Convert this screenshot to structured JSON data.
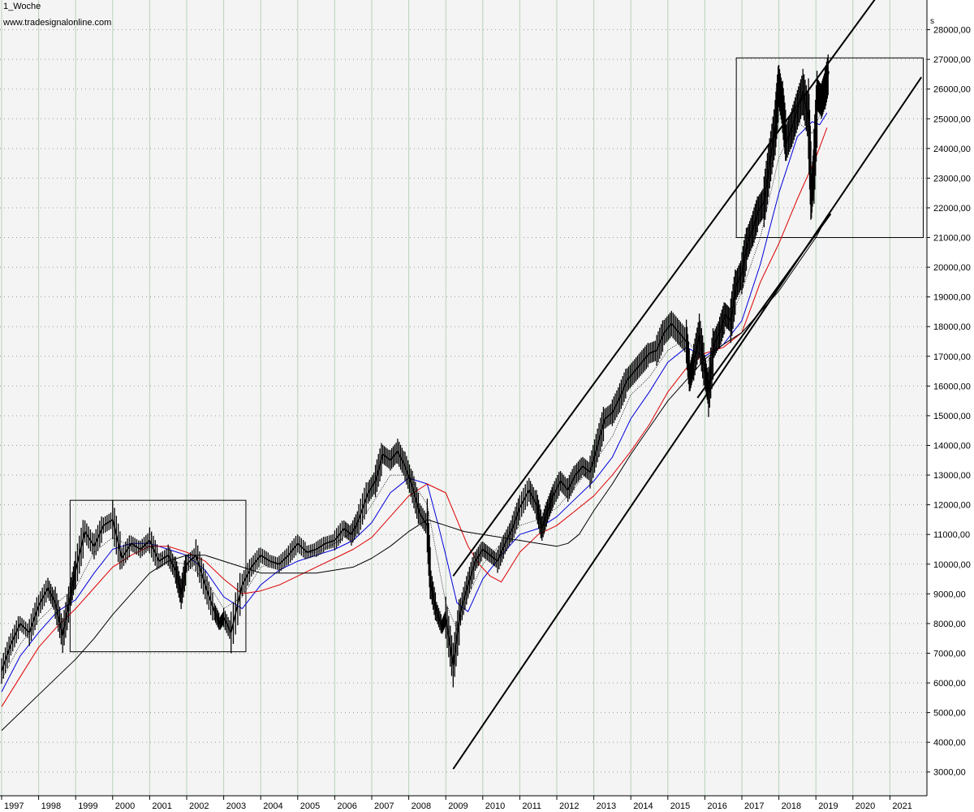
{
  "header": {
    "title": "1_Woche",
    "source": "www.tradesignalonline.com",
    "unit": "s"
  },
  "colors": {
    "background": "#f4f4f4",
    "grid_vertical": "#b8d2b8",
    "grid_horizontal": "#9a9a9a",
    "price": "#000000",
    "ma_short": "#000000",
    "ma_mid": "#0000dd",
    "ma_long": "#dd0000",
    "ma_longest": "#000000",
    "trendlines": "#000000",
    "boxes": "#000000"
  },
  "chart_data": {
    "type": "line",
    "title": "",
    "xlabel": "",
    "ylabel": "",
    "xlim": [
      1997.0,
      2021.9
    ],
    "ylim": [
      2200,
      29000
    ],
    "grid": true,
    "y_axis_side": "right",
    "x_ticks": [
      "1997",
      "1998",
      "1999",
      "2000",
      "2001",
      "2002",
      "2003",
      "2004",
      "2005",
      "2006",
      "2007",
      "2008",
      "2009",
      "2010",
      "2011",
      "2012",
      "2013",
      "2014",
      "2015",
      "2016",
      "2017",
      "2018",
      "2019",
      "2020",
      "2021"
    ],
    "y_ticks": [
      {
        "value": 3000,
        "label": "3000,00"
      },
      {
        "value": 4000,
        "label": "4000,00"
      },
      {
        "value": 5000,
        "label": "5000,00"
      },
      {
        "value": 6000,
        "label": "6000,00"
      },
      {
        "value": 7000,
        "label": "7000,00"
      },
      {
        "value": 8000,
        "label": "8000,00"
      },
      {
        "value": 9000,
        "label": "9000,00"
      },
      {
        "value": 10000,
        "label": "10000,00"
      },
      {
        "value": 11000,
        "label": "11000,00"
      },
      {
        "value": 12000,
        "label": "12000,00"
      },
      {
        "value": 13000,
        "label": "13000,00"
      },
      {
        "value": 14000,
        "label": "14000,00"
      },
      {
        "value": 15000,
        "label": "15000,00"
      },
      {
        "value": 16000,
        "label": "16000,00"
      },
      {
        "value": 17000,
        "label": "17000,00"
      },
      {
        "value": 18000,
        "label": "18000,00"
      },
      {
        "value": 19000,
        "label": "19000,00"
      },
      {
        "value": 20000,
        "label": "20000,00"
      },
      {
        "value": 21000,
        "label": "21000,00"
      },
      {
        "value": 22000,
        "label": "22000,00"
      },
      {
        "value": 23000,
        "label": "23000,00"
      },
      {
        "value": 24000,
        "label": "24000,00"
      },
      {
        "value": 25000,
        "label": "25000,00"
      },
      {
        "value": 26000,
        "label": "26000,00"
      },
      {
        "value": 27000,
        "label": "27000,00"
      },
      {
        "value": 28000,
        "label": "28000,00"
      }
    ],
    "series": [
      {
        "style": "price",
        "color": "#000000",
        "x": [
          1997.0,
          1997.25,
          1997.5,
          1997.75,
          1998.0,
          1998.25,
          1998.45,
          1998.65,
          1998.85,
          1999.0,
          1999.25,
          1999.5,
          1999.75,
          2000.0,
          2000.25,
          2000.5,
          2000.75,
          2001.0,
          2001.25,
          2001.5,
          2001.7,
          2001.85,
          2002.0,
          2002.25,
          2002.5,
          2002.75,
          2002.9,
          2003.0,
          2003.2,
          2003.5,
          2003.75,
          2004.0,
          2004.25,
          2004.5,
          2004.75,
          2005.0,
          2005.25,
          2005.5,
          2005.75,
          2006.0,
          2006.25,
          2006.45,
          2006.65,
          2006.9,
          2007.1,
          2007.3,
          2007.5,
          2007.7,
          2007.9,
          2008.1,
          2008.3,
          2008.5,
          2008.6,
          2008.75,
          2008.9,
          2009.0,
          2009.2,
          2009.4,
          2009.6,
          2009.8,
          2010.0,
          2010.2,
          2010.4,
          2010.6,
          2010.8,
          2011.0,
          2011.25,
          2011.45,
          2011.6,
          2011.75,
          2011.9,
          2012.1,
          2012.3,
          2012.5,
          2012.7,
          2012.9,
          2013.1,
          2013.3,
          2013.5,
          2013.7,
          2013.9,
          2014.1,
          2014.3,
          2014.5,
          2014.7,
          2014.9,
          2015.1,
          2015.3,
          2015.5,
          2015.6,
          2015.7,
          2015.85,
          2016.0,
          2016.1,
          2016.25,
          2016.4,
          2016.55,
          2016.7,
          2016.85,
          2017.0,
          2017.15,
          2017.3,
          2017.45,
          2017.6,
          2017.75,
          2017.9,
          2018.0,
          2018.1,
          2018.2,
          2018.35,
          2018.5,
          2018.65,
          2018.8,
          2018.88,
          2018.95,
          2019.05,
          2019.15,
          2019.25,
          2019.35
        ],
        "values": [
          6400,
          7300,
          8000,
          7700,
          8600,
          9200,
          8700,
          7600,
          8900,
          9800,
          11100,
          10600,
          11300,
          11500,
          10200,
          10700,
          10500,
          10800,
          10100,
          10300,
          9800,
          9000,
          10000,
          10300,
          9300,
          8400,
          8000,
          8200,
          7700,
          9300,
          9900,
          10300,
          10100,
          10000,
          10300,
          10700,
          10400,
          10500,
          10700,
          10800,
          11200,
          11000,
          11500,
          12400,
          12800,
          13700,
          13500,
          13800,
          13300,
          12600,
          11700,
          11300,
          9300,
          8400,
          7900,
          8200,
          6600,
          8400,
          9300,
          10100,
          10500,
          10300,
          10100,
          10700,
          11200,
          11900,
          12500,
          12000,
          11200,
          11800,
          12300,
          12800,
          12500,
          13000,
          13300,
          13100,
          14000,
          14900,
          15100,
          15600,
          16200,
          16500,
          16800,
          17100,
          17200,
          17800,
          18100,
          17800,
          17500,
          16300,
          16800,
          17700,
          16500,
          15800,
          17400,
          17800,
          18400,
          18200,
          19400,
          19800,
          20800,
          21300,
          21900,
          22200,
          23500,
          24700,
          26100,
          25400,
          24200,
          24700,
          25300,
          25900,
          25000,
          22400,
          23400,
          25800,
          25600,
          26000,
          26600
        ]
      },
      {
        "style": "ma",
        "color": "#000000",
        "x": [
          1997.0,
          1997.5,
          1998.0,
          1998.5,
          1999.0,
          1999.5,
          2000.0,
          2000.5,
          2001.0,
          2001.5,
          2002.0,
          2002.5,
          2003.0,
          2003.5,
          2004.0,
          2004.5,
          2005.0,
          2005.5,
          2006.0,
          2006.5,
          2007.0,
          2007.5,
          2008.0,
          2008.5,
          2008.8,
          2009.0,
          2009.3,
          2009.6,
          2010.0,
          2010.5,
          2011.0,
          2011.5,
          2012.0,
          2012.5,
          2013.0,
          2013.5,
          2014.0,
          2014.5,
          2015.0,
          2015.5,
          2016.0,
          2016.5,
          2017.0,
          2017.5,
          2018.0,
          2018.5,
          2018.9,
          2019.1,
          2019.3
        ],
        "values": [
          6100,
          7300,
          8100,
          8700,
          9200,
          10400,
          10900,
          10600,
          10600,
          10100,
          10000,
          9500,
          8500,
          8900,
          9900,
          10100,
          10400,
          10400,
          10700,
          11100,
          12000,
          13000,
          13000,
          12000,
          10000,
          8700,
          7800,
          8900,
          10000,
          10700,
          11300,
          11500,
          11900,
          12600,
          13400,
          14300,
          15700,
          16300,
          17200,
          17600,
          16700,
          17700,
          19200,
          21000,
          23700,
          24900,
          24500,
          25100,
          25600
        ]
      },
      {
        "style": "ma",
        "color": "#0000dd",
        "x": [
          1997.0,
          1997.5,
          1998.0,
          1998.5,
          1999.0,
          1999.5,
          2000.0,
          2000.5,
          2001.0,
          2001.5,
          2002.0,
          2002.5,
          2003.0,
          2003.5,
          2004.0,
          2004.5,
          2005.0,
          2005.5,
          2006.0,
          2006.5,
          2007.0,
          2007.5,
          2008.0,
          2008.5,
          2008.8,
          2009.0,
          2009.3,
          2009.6,
          2010.0,
          2010.5,
          2011.0,
          2011.5,
          2012.0,
          2012.5,
          2013.0,
          2013.5,
          2014.0,
          2014.5,
          2015.0,
          2015.5,
          2016.0,
          2016.5,
          2017.0,
          2017.5,
          2018.0,
          2018.5,
          2018.9,
          2019.1,
          2019.3
        ],
        "values": [
          5700,
          6900,
          7700,
          8400,
          8800,
          9700,
          10500,
          10700,
          10700,
          10500,
          10300,
          9800,
          8900,
          8500,
          9300,
          9800,
          10100,
          10300,
          10500,
          10800,
          11400,
          12400,
          12900,
          12700,
          11300,
          10300,
          8700,
          8400,
          9500,
          10300,
          11000,
          11200,
          11600,
          12200,
          12800,
          13600,
          14900,
          15800,
          16800,
          17300,
          17000,
          17400,
          18200,
          20100,
          22500,
          24400,
          24900,
          24800,
          25200
        ]
      },
      {
        "style": "ma",
        "color": "#dd0000",
        "x": [
          1997.0,
          1997.5,
          1998.0,
          1998.5,
          1999.0,
          1999.5,
          2000.0,
          2000.5,
          2001.0,
          2001.5,
          2002.0,
          2002.5,
          2003.0,
          2003.5,
          2004.0,
          2004.5,
          2005.0,
          2005.5,
          2006.0,
          2006.5,
          2007.0,
          2007.5,
          2008.0,
          2008.5,
          2009.0,
          2009.3,
          2009.6,
          2009.9,
          2010.2,
          2010.5,
          2010.7,
          2011.0,
          2011.5,
          2012.0,
          2012.5,
          2013.0,
          2013.5,
          2014.0,
          2014.5,
          2015.0,
          2015.5,
          2016.0,
          2016.5,
          2017.0,
          2017.5,
          2018.0,
          2018.5,
          2019.0,
          2019.3
        ],
        "values": [
          5200,
          6200,
          7200,
          7900,
          8500,
          9200,
          9900,
          10300,
          10600,
          10600,
          10400,
          10100,
          9500,
          9000,
          9100,
          9300,
          9600,
          9900,
          10200,
          10500,
          10900,
          11600,
          12300,
          12700,
          12400,
          11500,
          10600,
          10000,
          9600,
          9400,
          9800,
          10400,
          11000,
          11300,
          11800,
          12300,
          13000,
          13800,
          14700,
          15800,
          16600,
          17100,
          17300,
          17800,
          19500,
          20800,
          22300,
          23700,
          24700
        ]
      },
      {
        "style": "ma",
        "color": "#000000",
        "x": [
          1997.0,
          1997.5,
          1998.0,
          1998.5,
          1999.0,
          1999.5,
          2000.0,
          2000.5,
          2001.0,
          2001.5,
          2002.0,
          2002.5,
          2003.0,
          2003.5,
          2004.0,
          2004.5,
          2005.0,
          2005.5,
          2006.0,
          2006.5,
          2007.0,
          2007.5,
          2008.0,
          2008.5,
          2009.0,
          2009.5,
          2010.0,
          2010.5,
          2011.0,
          2011.5,
          2012.0,
          2012.3,
          2012.6,
          2013.0,
          2013.5,
          2014.0,
          2014.5,
          2015.0,
          2015.5,
          2016.0,
          2016.5,
          2017.0,
          2017.5,
          2018.0,
          2018.5,
          2019.0,
          2019.3
        ],
        "values": [
          4400,
          5000,
          5600,
          6200,
          6800,
          7500,
          8300,
          9000,
          9700,
          10100,
          10300,
          10300,
          10100,
          9900,
          9700,
          9700,
          9700,
          9700,
          9800,
          9900,
          10200,
          10600,
          11100,
          11500,
          11300,
          11100,
          11000,
          10900,
          10800,
          10700,
          10600,
          10700,
          11000,
          11800,
          12700,
          13700,
          14600,
          15500,
          16200,
          16900,
          17400,
          17800,
          18500,
          19200,
          20100,
          21000,
          21700
        ]
      }
    ],
    "trendlines": [
      {
        "x": [
          2009.2,
          2020.7
        ],
        "values": [
          9600,
          29200
        ]
      },
      {
        "x": [
          2009.2,
          2021.85
        ],
        "values": [
          3100,
          26400
        ]
      },
      {
        "x": [
          2015.8,
          2019.4
        ],
        "values": [
          15600,
          21800
        ]
      }
    ],
    "boxes": [
      {
        "x": [
          1998.85,
          2003.6
        ],
        "y": [
          7050,
          12150
        ]
      },
      {
        "x": [
          2016.85,
          2021.9
        ],
        "y": [
          21000,
          27050
        ]
      }
    ]
  }
}
